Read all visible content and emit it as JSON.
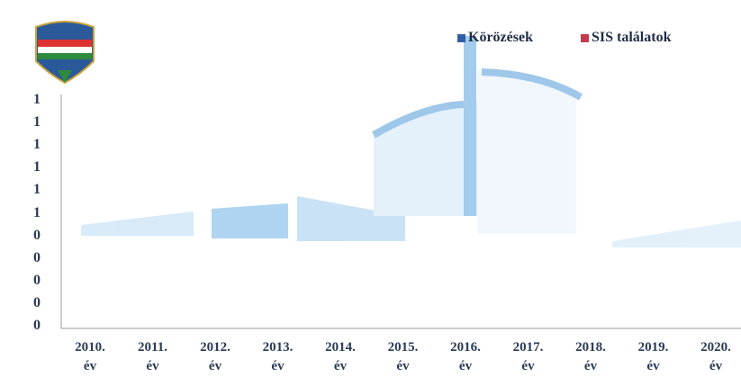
{
  "chart_data": {
    "type": "bar",
    "categories": [
      "2010. év",
      "2011. év",
      "2012. év",
      "2013. év",
      "2014. év",
      "2015. év",
      "2016. év",
      "2017. év",
      "2018. év",
      "2019. év",
      "2020. év"
    ],
    "series": [
      {
        "name": "Körözések",
        "color": "#2f5ea6",
        "values": [
          null,
          null,
          null,
          null,
          null,
          null,
          null,
          null,
          null,
          null,
          null
        ]
      },
      {
        "name": "SIS találatok",
        "color": "#c43a4e",
        "values": [
          null,
          null,
          null,
          null,
          null,
          null,
          null,
          null,
          null,
          null,
          null
        ]
      }
    ],
    "y_axis_labels": [
      "1",
      "1",
      "1",
      "1",
      "1",
      "1",
      "0",
      "0",
      "0",
      "0",
      "0"
    ]
  }
}
